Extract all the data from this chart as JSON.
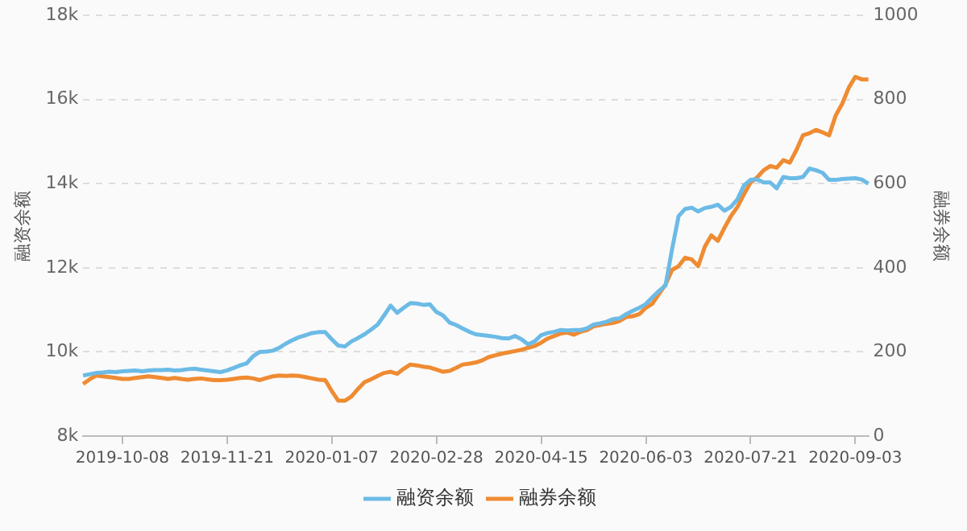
{
  "chart_data": {
    "type": "line",
    "ylabel": "融资余额",
    "y2label": "融券余额",
    "categories": [
      null,
      null,
      null,
      null,
      null,
      null,
      "2019-10-08",
      null,
      null,
      null,
      null,
      null,
      null,
      null,
      null,
      null,
      null,
      null,
      null,
      null,
      null,
      null,
      "2019-11-21",
      null,
      null,
      null,
      null,
      null,
      null,
      null,
      null,
      null,
      null,
      null,
      null,
      null,
      null,
      null,
      "2020-01-07",
      null,
      null,
      null,
      null,
      null,
      null,
      null,
      null,
      null,
      null,
      null,
      null,
      null,
      null,
      null,
      "2020-02-28",
      null,
      null,
      null,
      null,
      null,
      null,
      null,
      null,
      null,
      null,
      null,
      null,
      null,
      null,
      null,
      "2020-04-15",
      null,
      null,
      null,
      null,
      null,
      null,
      null,
      null,
      null,
      null,
      null,
      null,
      null,
      null,
      null,
      "2020-06-03",
      null,
      null,
      null,
      null,
      null,
      null,
      null,
      null,
      null,
      null,
      null,
      null,
      null,
      null,
      null,
      "2020-07-21",
      null,
      null,
      null,
      null,
      null,
      null,
      null,
      null,
      null,
      null,
      null,
      null,
      null,
      null,
      null,
      "2020-09-03",
      null,
      null
    ],
    "series": [
      {
        "name": "融资余额",
        "color": "#6cbbe6",
        "values": [
          9440,
          9470,
          9500,
          9510,
          9530,
          9520,
          9540,
          9550,
          9560,
          9540,
          9560,
          9570,
          9570,
          9580,
          9560,
          9570,
          9590,
          9600,
          9580,
          9560,
          9540,
          9520,
          9560,
          9620,
          9680,
          9730,
          9900,
          10000,
          10010,
          10030,
          10100,
          10200,
          10280,
          10350,
          10400,
          10450,
          10470,
          10470,
          10300,
          10150,
          10130,
          10250,
          10330,
          10420,
          10530,
          10650,
          10870,
          11100,
          10930,
          11050,
          11160,
          11150,
          11120,
          11130,
          10950,
          10870,
          10700,
          10640,
          10560,
          10480,
          10420,
          10400,
          10380,
          10360,
          10330,
          10320,
          10380,
          10300,
          10180,
          10250,
          10400,
          10450,
          10480,
          10520,
          10510,
          10520,
          10520,
          10560,
          10650,
          10680,
          10720,
          10780,
          10800,
          10900,
          10980,
          11050,
          11140,
          11300,
          11450,
          11580,
          12440,
          13230,
          13400,
          13430,
          13340,
          13420,
          13450,
          13500,
          13360,
          13450,
          13630,
          13960,
          14090,
          14100,
          14030,
          14030,
          13890,
          14160,
          14130,
          14130,
          14160,
          14360,
          14320,
          14260,
          14090,
          14090,
          14110,
          14120,
          14130,
          14100,
          14000
        ]
      },
      {
        "name": "融券余额",
        "color": "#ef8b32",
        "axis": "y2",
        "values": [
          124,
          135,
          144,
          142,
          140,
          138,
          136,
          136,
          138,
          140,
          142,
          140,
          138,
          136,
          138,
          136,
          134,
          136,
          137,
          135,
          133,
          133,
          134,
          136,
          138,
          139,
          137,
          133,
          138,
          142,
          144,
          143,
          144,
          143,
          140,
          137,
          134,
          133,
          107,
          84,
          84,
          94,
          112,
          128,
          135,
          143,
          150,
          153,
          148,
          160,
          170,
          168,
          165,
          163,
          158,
          153,
          155,
          162,
          170,
          172,
          175,
          180,
          188,
          192,
          196,
          199,
          202,
          205,
          210,
          214,
          222,
          232,
          238,
          244,
          246,
          241,
          248,
          252,
          261,
          264,
          267,
          269,
          274,
          283,
          285,
          290,
          305,
          315,
          338,
          360,
          395,
          404,
          424,
          420,
          404,
          450,
          477,
          464,
          495,
          523,
          545,
          575,
          603,
          615,
          632,
          642,
          638,
          656,
          650,
          680,
          715,
          720,
          728,
          722,
          715,
          762,
          790,
          828,
          854,
          848,
          848
        ]
      }
    ],
    "ylim": [
      8000,
      18000
    ],
    "yticks": [
      {
        "value": 8000,
        "label": "8k"
      },
      {
        "value": 10000,
        "label": "10k"
      },
      {
        "value": 12000,
        "label": "12k"
      },
      {
        "value": 14000,
        "label": "14k"
      },
      {
        "value": 16000,
        "label": "16k"
      },
      {
        "value": 18000,
        "label": "18k"
      }
    ],
    "y2lim": [
      0,
      1000
    ],
    "y2ticks": [
      0,
      200,
      400,
      600,
      800,
      1000
    ],
    "grid": "y",
    "legend": "bottom",
    "marker": "none",
    "line_style": "solid"
  }
}
